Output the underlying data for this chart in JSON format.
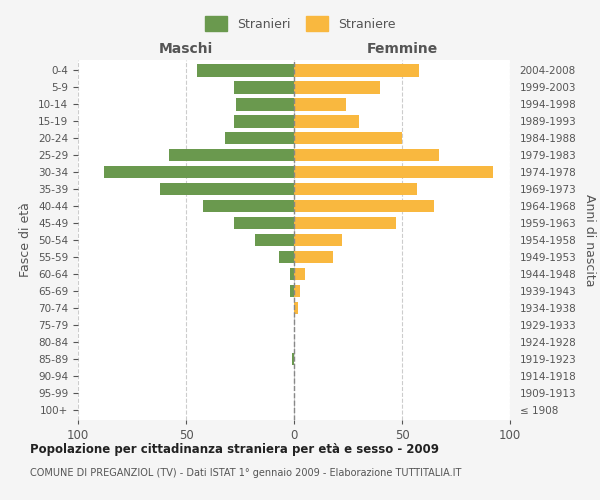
{
  "age_groups": [
    "100+",
    "95-99",
    "90-94",
    "85-89",
    "80-84",
    "75-79",
    "70-74",
    "65-69",
    "60-64",
    "55-59",
    "50-54",
    "45-49",
    "40-44",
    "35-39",
    "30-34",
    "25-29",
    "20-24",
    "15-19",
    "10-14",
    "5-9",
    "0-4"
  ],
  "birth_years": [
    "≤ 1908",
    "1909-1913",
    "1914-1918",
    "1919-1923",
    "1924-1928",
    "1929-1933",
    "1934-1938",
    "1939-1943",
    "1944-1948",
    "1949-1953",
    "1954-1958",
    "1959-1963",
    "1964-1968",
    "1969-1973",
    "1974-1978",
    "1979-1983",
    "1984-1988",
    "1989-1993",
    "1994-1998",
    "1999-2003",
    "2004-2008"
  ],
  "maschi": [
    0,
    0,
    0,
    1,
    0,
    0,
    0,
    2,
    2,
    7,
    18,
    28,
    42,
    62,
    88,
    58,
    32,
    28,
    27,
    28,
    45
  ],
  "femmine": [
    0,
    0,
    0,
    0,
    0,
    0,
    2,
    3,
    5,
    18,
    22,
    47,
    65,
    57,
    92,
    67,
    50,
    30,
    24,
    40,
    58
  ],
  "maschi_color": "#6a994e",
  "femmine_color": "#f9b83f",
  "background_color": "#f5f5f5",
  "plot_bg_color": "#ffffff",
  "grid_color": "#cccccc",
  "title": "Popolazione per cittadinanza straniera per età e sesso - 2009",
  "subtitle": "COMUNE DI PREGANZIOL (TV) - Dati ISTAT 1° gennaio 2009 - Elaborazione TUTTITALIA.IT",
  "xlabel_left": "Maschi",
  "xlabel_right": "Femmine",
  "ylabel_left": "Fasce di età",
  "ylabel_right": "Anni di nascita",
  "legend_maschi": "Stranieri",
  "legend_femmine": "Straniere",
  "xlim": 100,
  "bar_height": 0.75
}
